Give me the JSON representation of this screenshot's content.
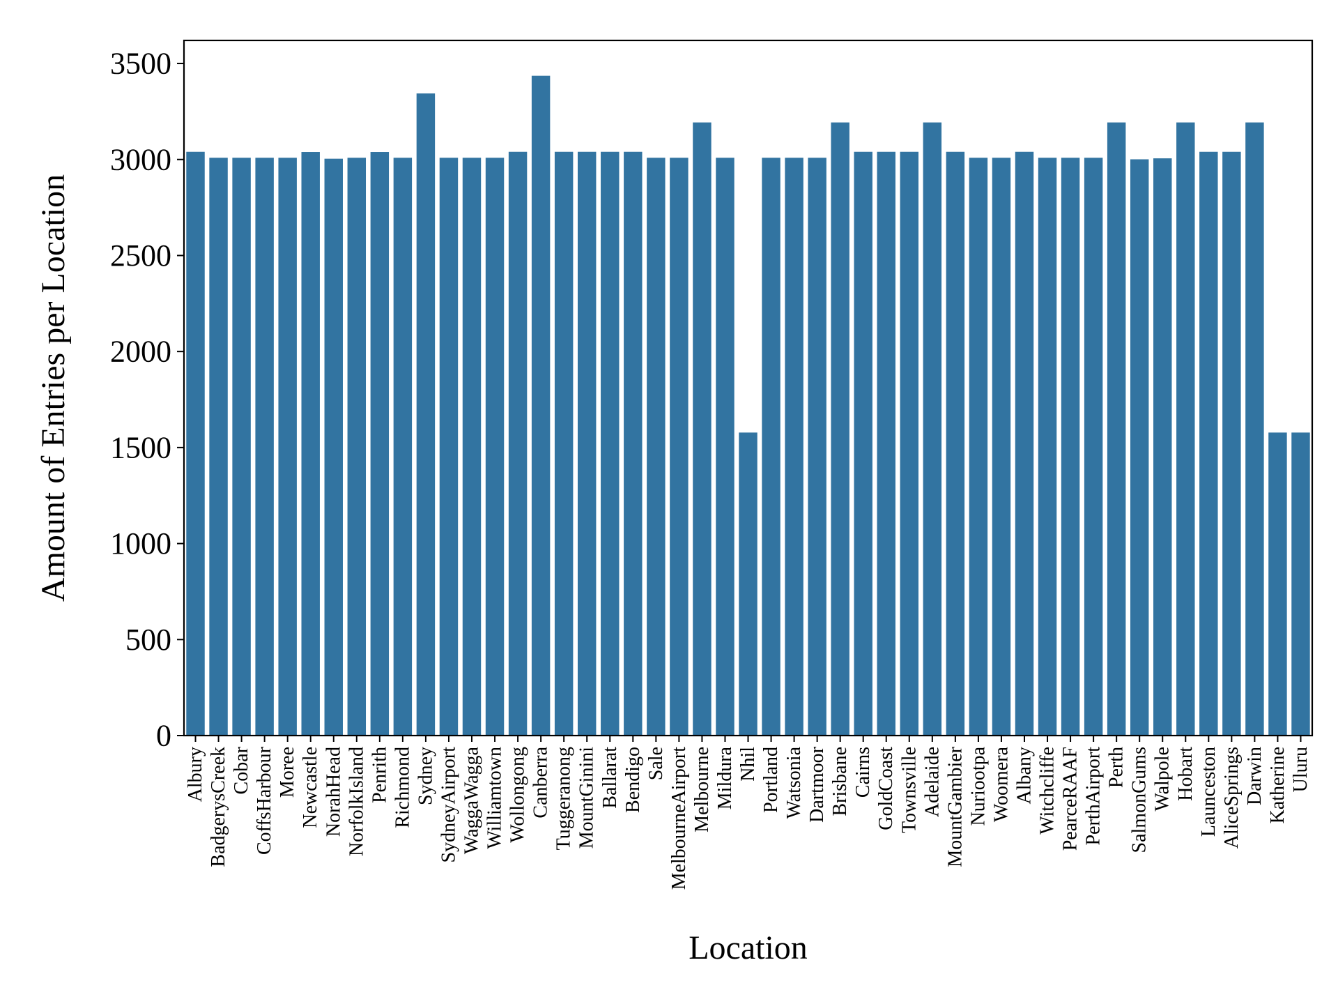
{
  "chart_data": {
    "type": "bar",
    "xlabel": "Location",
    "ylabel": "Amount of Entries per Location",
    "ylim": [
      0,
      3620
    ],
    "yticks": [
      0,
      500,
      1000,
      1500,
      2000,
      2500,
      3000,
      3500
    ],
    "bar_color": "#3274a1",
    "grid": false,
    "categories": [
      "Albury",
      "BadgerysCreek",
      "Cobar",
      "CoffsHarbour",
      "Moree",
      "Newcastle",
      "NorahHead",
      "NorfolkIsland",
      "Penrith",
      "Richmond",
      "Sydney",
      "SydneyAirport",
      "WaggaWagga",
      "Williamtown",
      "Wollongong",
      "Canberra",
      "Tuggeranong",
      "MountGinini",
      "Ballarat",
      "Bendigo",
      "Sale",
      "MelbourneAirport",
      "Melbourne",
      "Mildura",
      "Nhil",
      "Portland",
      "Watsonia",
      "Dartmoor",
      "Brisbane",
      "Cairns",
      "GoldCoast",
      "Townsville",
      "Adelaide",
      "MountGambier",
      "Nuriootpa",
      "Woomera",
      "Albany",
      "Witchcliffe",
      "PearceRAAF",
      "PerthAirport",
      "Perth",
      "SalmonGums",
      "Walpole",
      "Hobart",
      "Launceston",
      "AliceSprings",
      "Darwin",
      "Katherine",
      "Uluru"
    ],
    "values": [
      3040,
      3009,
      3009,
      3009,
      3009,
      3039,
      3004,
      3009,
      3039,
      3009,
      3344,
      3009,
      3009,
      3009,
      3040,
      3436,
      3040,
      3040,
      3040,
      3040,
      3009,
      3009,
      3193,
      3009,
      1578,
      3009,
      3009,
      3009,
      3193,
      3040,
      3040,
      3040,
      3193,
      3040,
      3009,
      3009,
      3040,
      3009,
      3009,
      3009,
      3193,
      3001,
      3006,
      3193,
      3040,
      3040,
      3193,
      1578,
      1578
    ]
  }
}
